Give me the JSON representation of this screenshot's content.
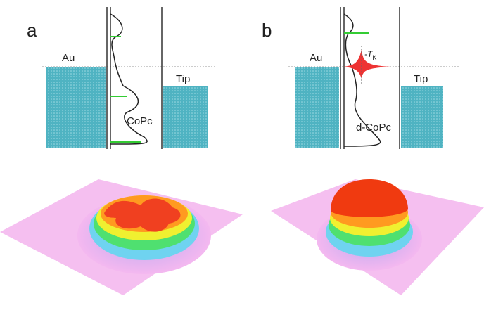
{
  "panels": [
    {
      "label": "a",
      "sample": "Au",
      "tip": "Tip",
      "molecule": "CoPc"
    },
    {
      "label": "b",
      "sample": "Au",
      "tip": "Tip",
      "molecule": "d-CoPc",
      "annotation": {
        "text": "-T",
        "subscript": "K"
      }
    }
  ]
}
